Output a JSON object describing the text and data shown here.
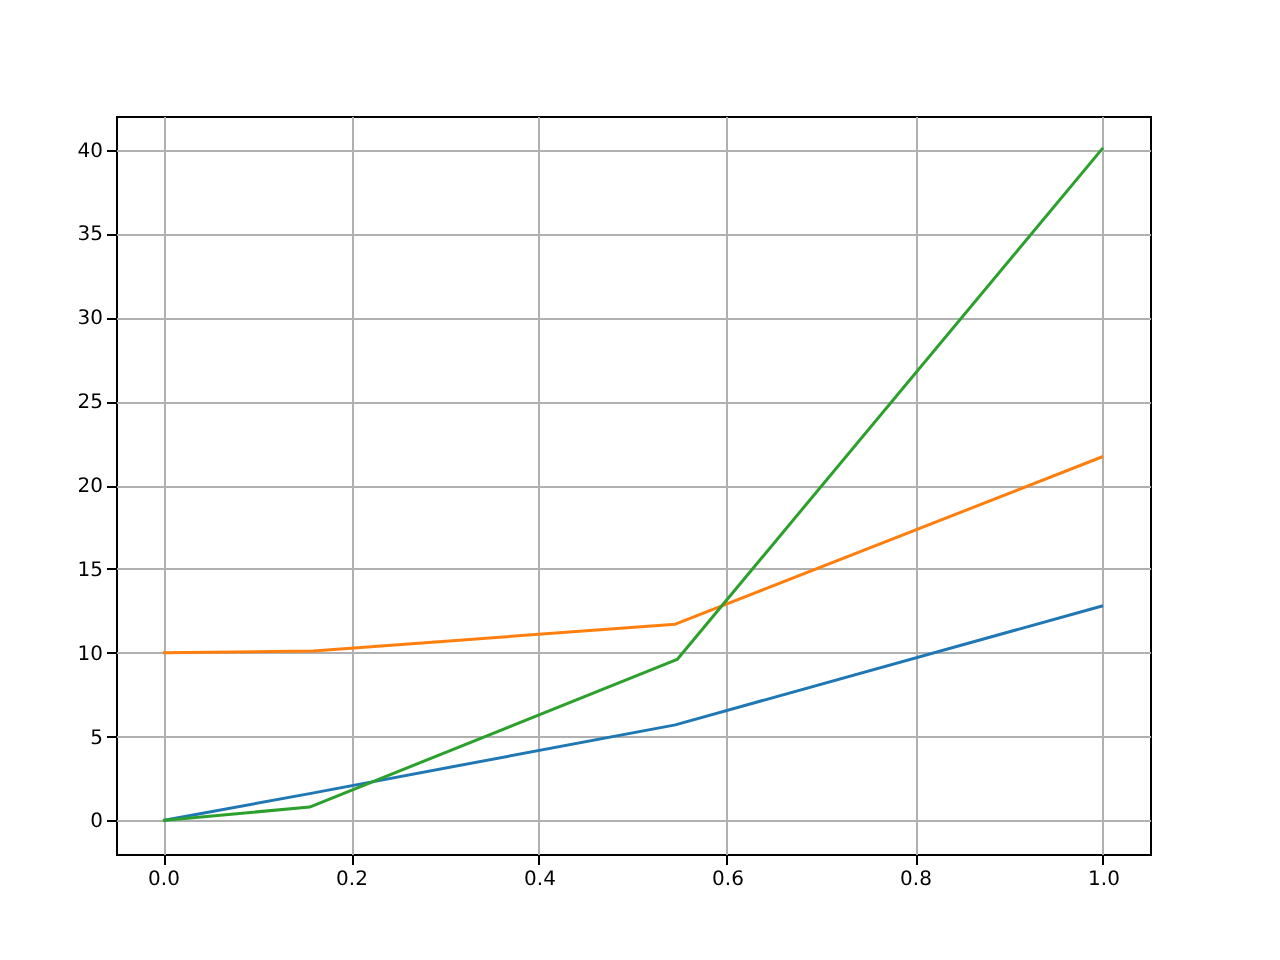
{
  "chart_data": {
    "type": "line",
    "xlim": [
      -0.05,
      1.05
    ],
    "ylim": [
      -2,
      42
    ],
    "xticks": [
      {
        "value": 0,
        "label": "0.0"
      },
      {
        "value": 0.2,
        "label": "0.2"
      },
      {
        "value": 0.4,
        "label": "0.4"
      },
      {
        "value": 0.6,
        "label": "0.6"
      },
      {
        "value": 0.8,
        "label": "0.8"
      },
      {
        "value": 1,
        "label": "1.0"
      }
    ],
    "yticks": [
      0,
      5,
      10,
      15,
      20,
      25,
      30,
      35,
      40
    ],
    "grid": true,
    "series": [
      {
        "color": "#1f77b4",
        "x": [
          0,
          0.156,
          0.545,
          1
        ],
        "values": [
          0,
          1.6,
          5.7,
          12.8
        ]
      },
      {
        "color": "#ff7f0e",
        "x": [
          0,
          0.16,
          0.545,
          1
        ],
        "values": [
          10,
          10.1,
          11.7,
          21.7
        ]
      },
      {
        "color": "#2ca02c",
        "x": [
          0,
          0.156,
          0.547,
          1
        ],
        "values": [
          0,
          0.8,
          9.6,
          40.1
        ]
      }
    ]
  }
}
